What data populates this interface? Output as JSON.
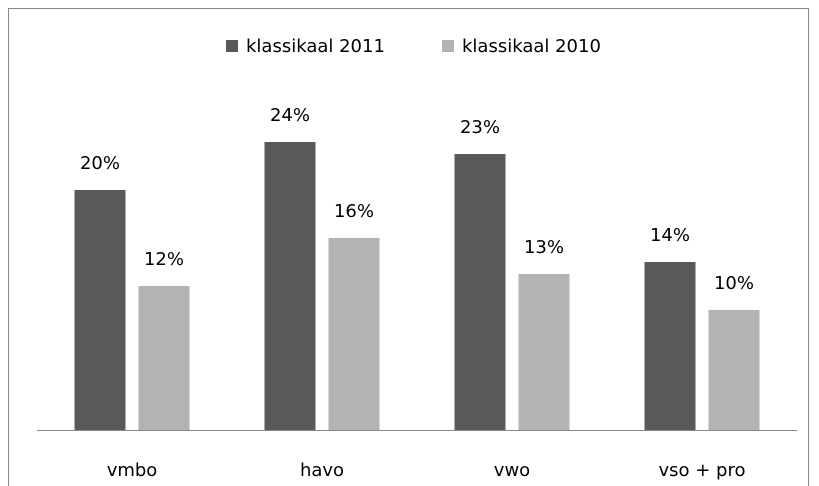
{
  "chart_data": {
    "type": "bar",
    "categories": [
      "vmbo",
      "havo",
      "vwo",
      "vso + pro"
    ],
    "series": [
      {
        "name": "klassikaal 2011",
        "color": "#595959",
        "values": [
          20,
          24,
          23,
          14
        ],
        "value_labels": [
          "20%",
          "24%",
          "23%",
          "14%"
        ]
      },
      {
        "name": "klassikaal 2010",
        "color": "#b3b3b3",
        "values": [
          12,
          16,
          13,
          10
        ],
        "value_labels": [
          "12%",
          "16%",
          "13%",
          "10%"
        ]
      }
    ],
    "ylim": [
      0,
      30
    ],
    "legend": "top"
  }
}
